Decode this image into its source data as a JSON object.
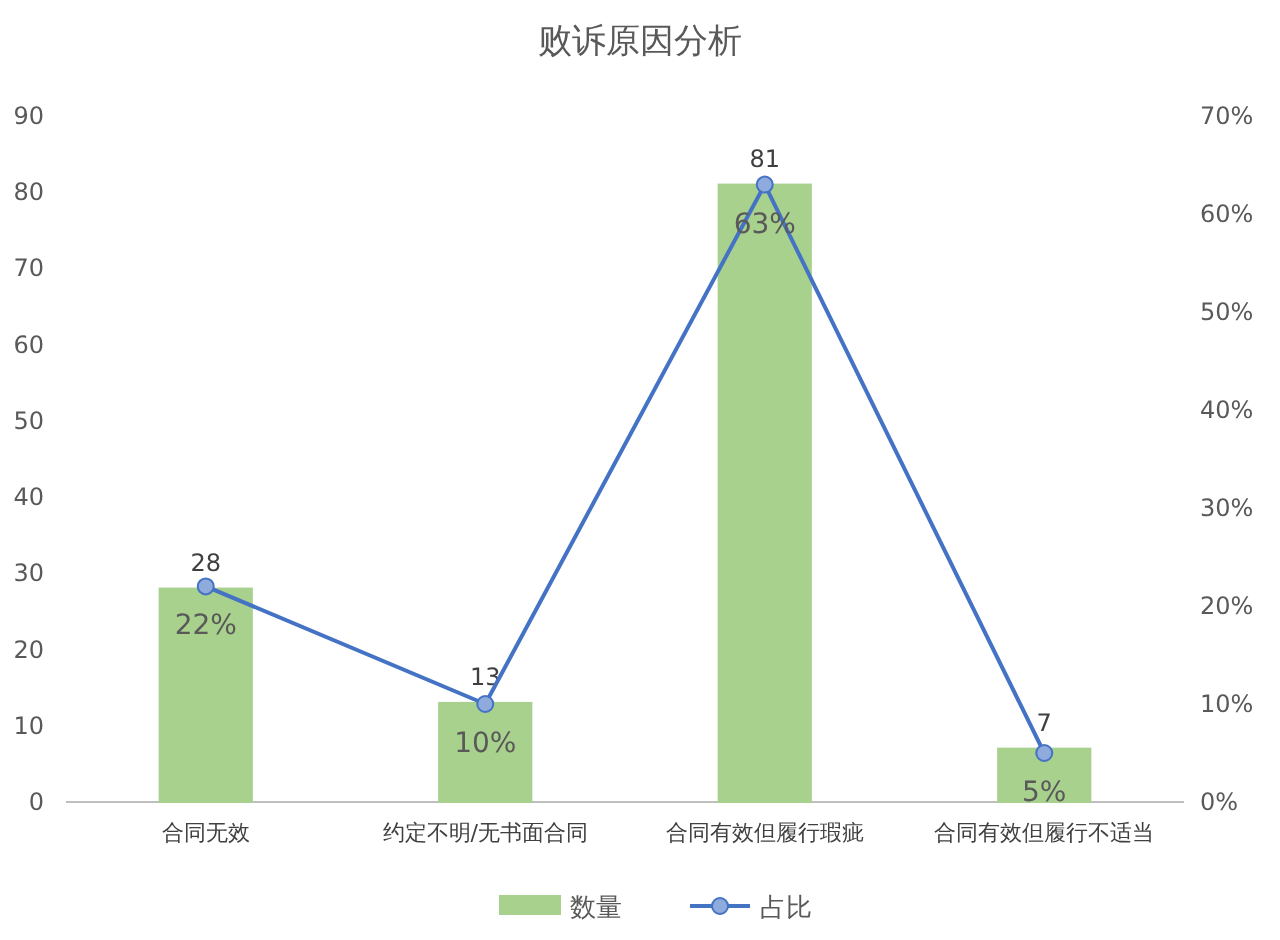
{
  "chart_data": {
    "type": "bar",
    "title": "败诉原因分析",
    "categories": [
      "合同无效",
      "约定不明/无书面合同",
      "合同有效但履行瑕疵",
      "合同有效但履行不适当"
    ],
    "series": [
      {
        "name": "数量",
        "color": "#a9d18e",
        "values": [
          28,
          13,
          81,
          7
        ],
        "value_labels": [
          "28",
          "13",
          "81",
          "7"
        ]
      },
      {
        "name": "占比",
        "type": "line",
        "axis": "y2",
        "color": "#4472c4",
        "values": [
          22,
          10,
          63,
          5
        ],
        "value_labels": [
          "22%",
          "10%",
          "63%",
          "5%"
        ],
        "marker": "circle"
      }
    ],
    "ylim": [
      0,
      90
    ],
    "yticks": [
      0,
      10,
      20,
      30,
      40,
      50,
      60,
      70,
      80,
      90
    ],
    "y2lim": [
      0,
      70
    ],
    "y2ticks": [
      {
        "value": 0,
        "label": "0%"
      },
      {
        "value": 10,
        "label": "10%"
      },
      {
        "value": 20,
        "label": "20%"
      },
      {
        "value": 30,
        "label": "30%"
      },
      {
        "value": 40,
        "label": "40%"
      },
      {
        "value": 50,
        "label": "50%"
      },
      {
        "value": 60,
        "label": "60%"
      },
      {
        "value": 70,
        "label": "70%"
      }
    ],
    "legend": "bottom",
    "grid": false
  }
}
